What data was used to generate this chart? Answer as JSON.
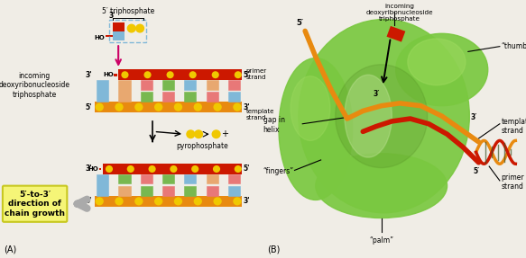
{
  "fig_width": 5.83,
  "fig_height": 2.87,
  "dpi": 100,
  "bg_color": "#f0ede6",
  "panel_A": {
    "label": "(A)",
    "incoming_text": "incoming\ndeoxyribonucleoside\ntriphosphate",
    "chain_growth_text": "5′-to-3′\ndirection of\nchain growth",
    "chain_growth_bg": "#f5f577",
    "pyrophosphate_text": "pyrophosphate",
    "triphosphate_text": "5′ triphosphate",
    "primer_strand_text": "primer\nstrand",
    "template_strand_text": "template\nstrand",
    "orange_color": "#e88a10",
    "red_color": "#cc1800",
    "yellow_color": "#f0c800",
    "pink_color": "#e87878",
    "blue_color": "#80b8d8",
    "green_color": "#78b850",
    "salmon_color": "#e8a870",
    "arrow_color": "#cc0066",
    "gray_arrow_color": "#aaaaaa"
  },
  "panel_B": {
    "label": "(B)",
    "green_body": "#7ac840",
    "green_light": "#a0dc60",
    "green_dark": "#508820",
    "thumb_text": "“thumb”",
    "template_strand_text": "template\nstrand",
    "primer_strand_text": "primer\nstrand",
    "fingers_text": "“fingers”",
    "palm_text": "“palm”",
    "gap_text": "gap in\nhelix",
    "incoming_text": "incoming\ndeoxyribonucleoside\ntriphosphate",
    "five_prime": "5′",
    "three_prime": "3′",
    "orange_strand": "#e88a10",
    "red_strand": "#cc1800",
    "red_incoming": "#cc1800"
  }
}
